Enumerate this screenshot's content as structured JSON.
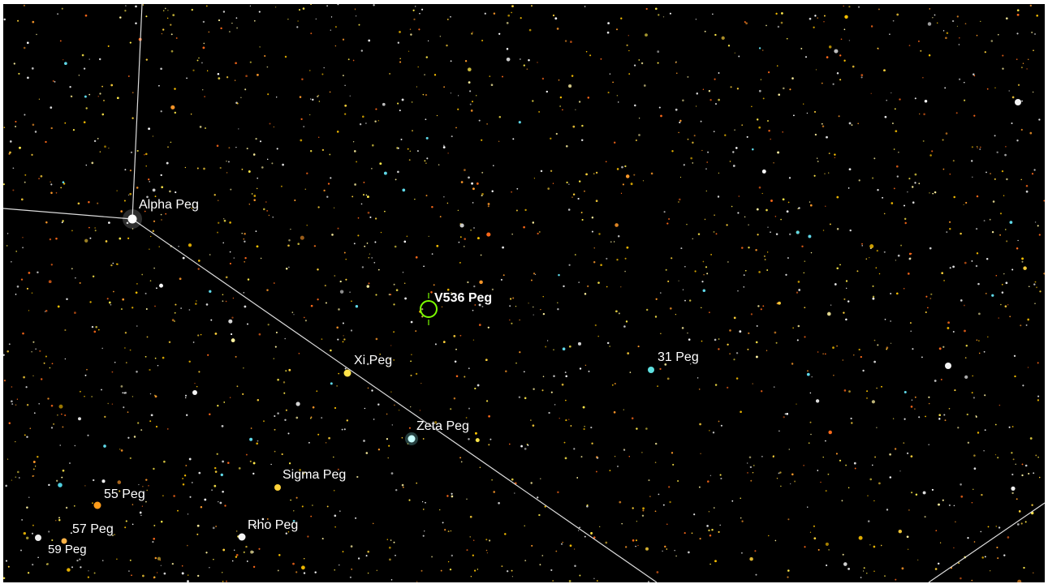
{
  "map": {
    "background": "#000000",
    "constellation_line_color": "#dcdcdc",
    "target_marker_color": "#7cfc00"
  },
  "target": {
    "name": "V536 Peg",
    "icon": "target-reticle-icon"
  },
  "labels": {
    "alpha_peg": "Alpha Peg",
    "xi_peg": "Xi Peg",
    "peg_31": "31 Peg",
    "zeta_peg": "Zeta Peg",
    "sigma_peg": "Sigma Peg",
    "peg_55": "55 Peg",
    "peg_57": "57 Peg",
    "peg_59": "59 Peg",
    "rho_peg": "Rho Peg"
  }
}
